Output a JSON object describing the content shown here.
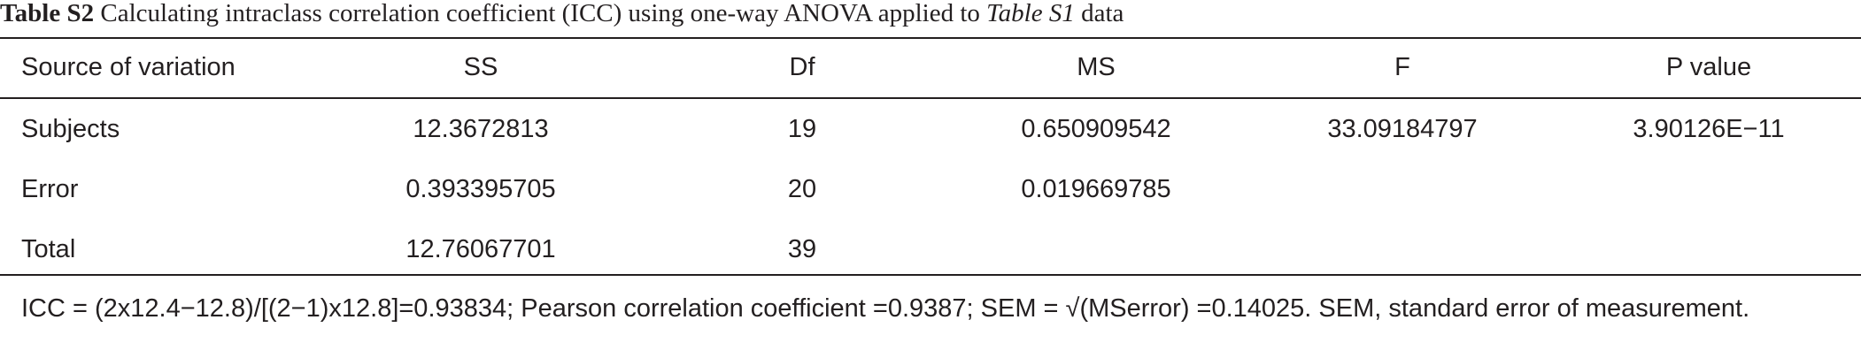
{
  "caption": {
    "label": "Table S2",
    "text": "Calculating intraclass correlation coefficient (ICC) using one-way ANOVA applied to",
    "italic": "Table S1",
    "tail": "data"
  },
  "table": {
    "header": [
      "Source of variation",
      "SS",
      "Df",
      "MS",
      "F",
      "P value"
    ],
    "rows": [
      [
        "Subjects",
        "12.3672813",
        "19",
        "0.650909542",
        "33.09184797",
        "3.90126E−11"
      ],
      [
        "Error",
        "0.393395705",
        "20",
        "0.019669785"
      ],
      [
        "Total",
        "12.76067701",
        "39"
      ]
    ]
  },
  "footnote": "ICC = (2x12.4−12.8)/[(2−1)x12.8]=0.93834; Pearson correlation coefficient =0.9387; SEM = √(MSerror) =0.14025. SEM, standard error of measurement."
}
